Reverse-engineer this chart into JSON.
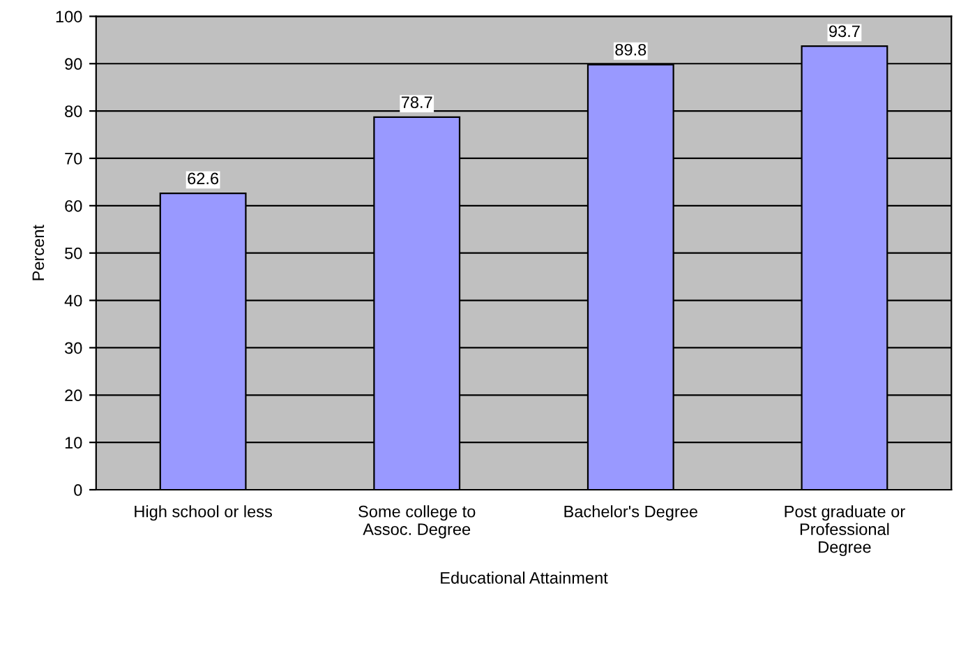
{
  "chart_data": {
    "type": "bar",
    "categories": [
      "High school or less",
      "Some college to\nAssoc. Degree",
      "Bachelor's Degree",
      "Post graduate or\nProfessional\nDegree"
    ],
    "values": [
      62.6,
      78.7,
      89.8,
      93.7
    ],
    "color": "#9999ff",
    "xlabel": "Educational Attainment",
    "ylabel": "Percent",
    "ylim": [
      0,
      100
    ],
    "yticks": [
      0,
      10,
      20,
      30,
      40,
      50,
      60,
      70,
      80,
      90,
      100
    ],
    "grid": "y",
    "data_labels": true,
    "legend": false
  }
}
